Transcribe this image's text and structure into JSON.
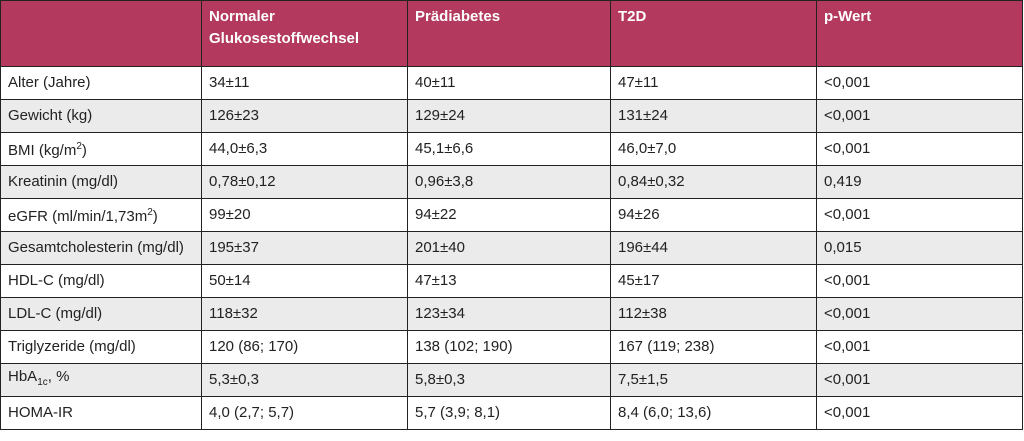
{
  "table": {
    "header": [
      "",
      "Normaler Glukosestoffwechsel",
      "Prädiabetes",
      "T2D",
      "p-Wert"
    ],
    "header_color": "#b33a5e",
    "rows": [
      {
        "label": "Alter (Jahre)",
        "label_suffix": "",
        "values": [
          "34±11",
          "40±11",
          "47±11",
          "<0,001"
        ]
      },
      {
        "label": "Gewicht (kg)",
        "label_suffix": "",
        "values": [
          "126±23",
          "129±24",
          "131±24",
          "<0,001"
        ]
      },
      {
        "label": "BMI (kg/m",
        "label_sup": "2",
        "label_suffix": ")",
        "values": [
          "44,0±6,3",
          "45,1±6,6",
          "46,0±7,0",
          "<0,001"
        ]
      },
      {
        "label": "Kreatinin (mg/dl)",
        "label_suffix": "",
        "values": [
          "0,78±0,12",
          "0,96±3,8",
          "0,84±0,32",
          "0,419"
        ]
      },
      {
        "label": "eGFR (ml/min/1,73m",
        "label_sup": "2",
        "label_suffix": ")",
        "values": [
          "99±20",
          "94±22",
          "94±26",
          "<0,001"
        ]
      },
      {
        "label": "Gesamtcholesterin (mg/dl)",
        "label_suffix": "",
        "values": [
          "195±37",
          "201±40",
          "196±44",
          "0,015"
        ]
      },
      {
        "label": "HDL-C (mg/dl)",
        "label_suffix": "",
        "values": [
          "50±14",
          "47±13",
          "45±17",
          "<0,001"
        ]
      },
      {
        "label": "LDL-C (mg/dl)",
        "label_suffix": "",
        "values": [
          "118±32",
          "123±34",
          "112±38",
          "<0,001"
        ]
      },
      {
        "label": "Triglyzeride (mg/dl)",
        "label_suffix": "",
        "values": [
          "120 (86; 170)",
          "138 (102; 190)",
          "167 (119; 238)",
          "<0,001"
        ]
      },
      {
        "label": "HbA",
        "label_sub": "1c",
        "label_suffix": ", %",
        "values": [
          "5,3±0,3",
          "5,8±0,3",
          "7,5±1,5",
          "<0,001"
        ]
      },
      {
        "label": "HOMA-IR",
        "label_suffix": "",
        "values": [
          "4,0 (2,7; 5,7)",
          "5,7 (3,9; 8,1)",
          "8,4 (6,0; 13,6)",
          "<0,001"
        ]
      }
    ]
  }
}
